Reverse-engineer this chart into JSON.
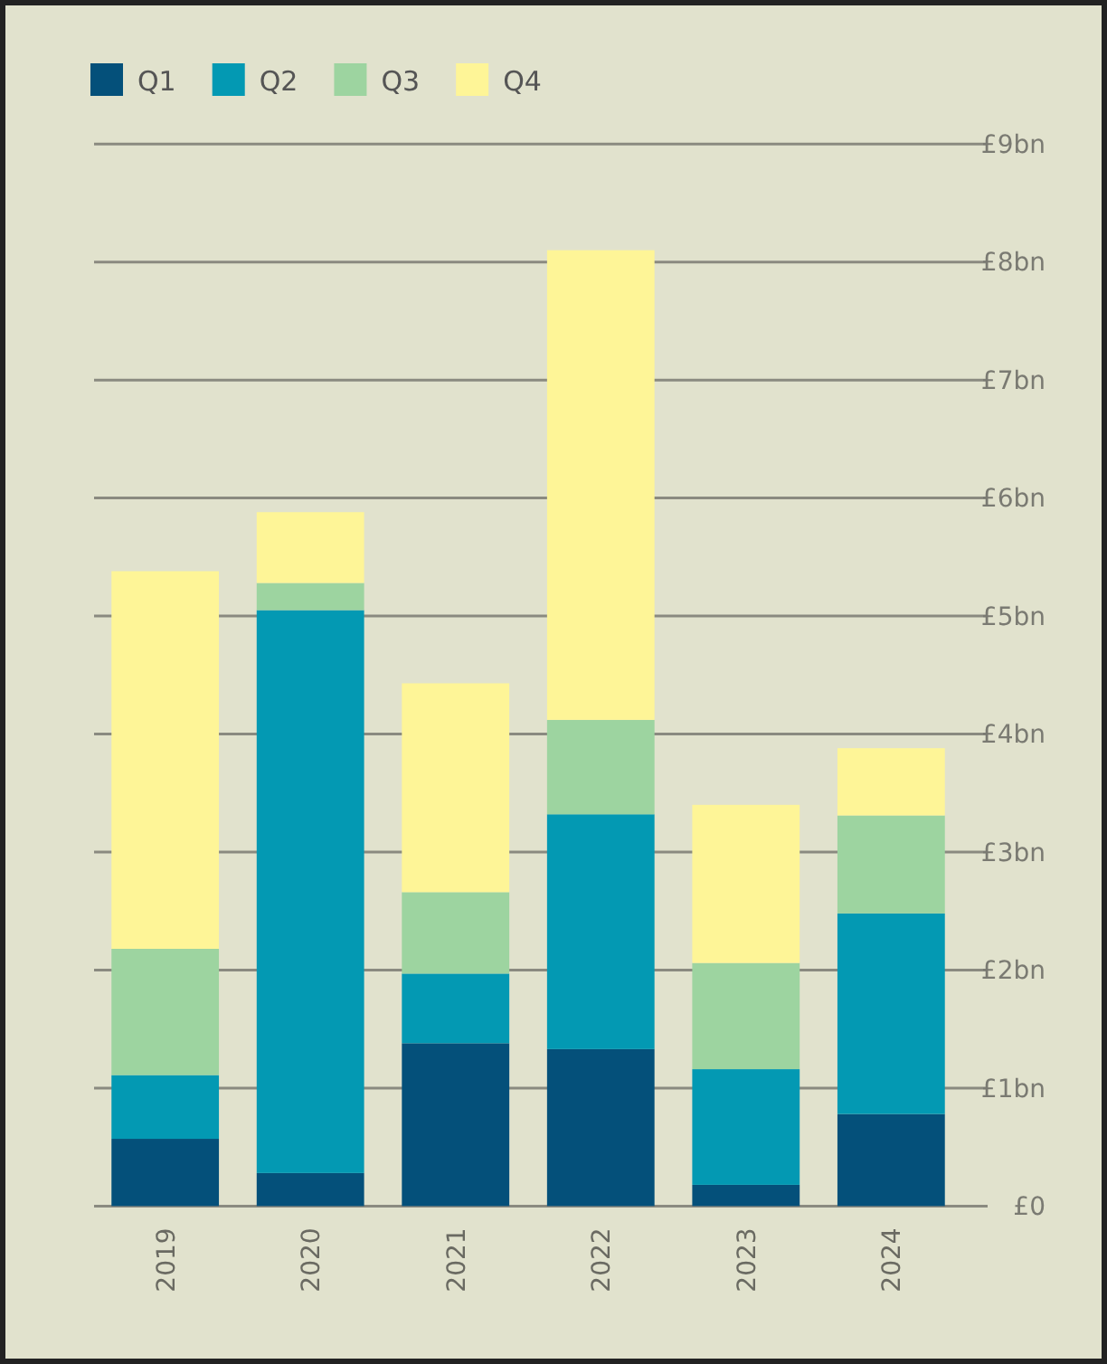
{
  "chart_data": {
    "type": "bar",
    "stacked": true,
    "categories": [
      "2019",
      "2020",
      "2021",
      "2022",
      "2023",
      "2024"
    ],
    "series": [
      {
        "name": "Q1",
        "color": "#04507a",
        "values": [
          0.57,
          0.28,
          1.38,
          1.33,
          0.18,
          0.78
        ]
      },
      {
        "name": "Q2",
        "color": "#0399b3",
        "values": [
          0.54,
          4.77,
          0.59,
          1.99,
          0.98,
          1.7
        ]
      },
      {
        "name": "Q3",
        "color": "#9dd4a0",
        "values": [
          1.07,
          0.23,
          0.69,
          0.8,
          0.9,
          0.83
        ]
      },
      {
        "name": "Q4",
        "color": "#fef597",
        "values": [
          3.2,
          0.6,
          1.77,
          3.98,
          1.34,
          0.57
        ]
      }
    ],
    "ylim": [
      0,
      9
    ],
    "yticks": [
      {
        "value": 0,
        "label": "£0"
      },
      {
        "value": 1,
        "label": "£1bn"
      },
      {
        "value": 2,
        "label": "£2bn"
      },
      {
        "value": 3,
        "label": "£3bn"
      },
      {
        "value": 4,
        "label": "£4bn"
      },
      {
        "value": 5,
        "label": "£5bn"
      },
      {
        "value": 6,
        "label": "£6bn"
      },
      {
        "value": 7,
        "label": "£7bn"
      },
      {
        "value": 8,
        "label": "£8bn"
      },
      {
        "value": 9,
        "label": "£9bn"
      }
    ],
    "grid": "y",
    "legend": "top left"
  }
}
